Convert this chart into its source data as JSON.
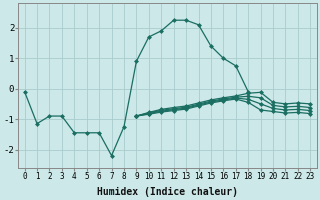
{
  "xlabel": "Humidex (Indice chaleur)",
  "background_color": "#cce8e8",
  "grid_color": "#aacccc",
  "line_color": "#1a6e62",
  "x_values": [
    0,
    1,
    2,
    3,
    4,
    5,
    6,
    7,
    8,
    9,
    10,
    11,
    12,
    13,
    14,
    15,
    16,
    17,
    18,
    19,
    20,
    21,
    22,
    23
  ],
  "y_main": [
    -0.1,
    -1.15,
    -0.9,
    -0.9,
    -1.45,
    -1.45,
    -1.45,
    -2.2,
    -1.25,
    0.9,
    1.7,
    1.9,
    2.25,
    2.25,
    2.1,
    1.4,
    1.0,
    0.75,
    -0.1,
    null,
    null,
    null,
    null,
    null
  ],
  "y_line2": [
    null,
    null,
    null,
    null,
    null,
    null,
    null,
    null,
    null,
    -0.9,
    -0.78,
    -0.68,
    -0.62,
    -0.57,
    -0.47,
    -0.37,
    -0.3,
    -0.24,
    -0.15,
    -0.12,
    -0.45,
    -0.5,
    -0.47,
    -0.5
  ],
  "y_line3": [
    null,
    null,
    null,
    null,
    null,
    null,
    null,
    null,
    null,
    -0.9,
    -0.8,
    -0.71,
    -0.66,
    -0.61,
    -0.51,
    -0.41,
    -0.34,
    -0.28,
    -0.25,
    -0.3,
    -0.55,
    -0.6,
    -0.58,
    -0.62
  ],
  "y_line4": [
    null,
    null,
    null,
    null,
    null,
    null,
    null,
    null,
    null,
    -0.9,
    -0.82,
    -0.74,
    -0.69,
    -0.64,
    -0.54,
    -0.44,
    -0.37,
    -0.31,
    -0.35,
    -0.5,
    -0.65,
    -0.7,
    -0.68,
    -0.72
  ],
  "y_line5": [
    null,
    null,
    null,
    null,
    null,
    null,
    null,
    null,
    null,
    -0.9,
    -0.84,
    -0.77,
    -0.72,
    -0.67,
    -0.57,
    -0.47,
    -0.4,
    -0.34,
    -0.45,
    -0.7,
    -0.75,
    -0.8,
    -0.78,
    -0.82
  ],
  "ylim": [
    -2.6,
    2.8
  ],
  "xlim": [
    -0.5,
    23.5
  ],
  "yticks": [
    -2,
    -1,
    0,
    1,
    2
  ],
  "xticks": [
    0,
    1,
    2,
    3,
    4,
    5,
    6,
    7,
    8,
    9,
    10,
    11,
    12,
    13,
    14,
    15,
    16,
    17,
    18,
    19,
    20,
    21,
    22,
    23
  ],
  "markersize": 2.5,
  "lw": 0.9
}
